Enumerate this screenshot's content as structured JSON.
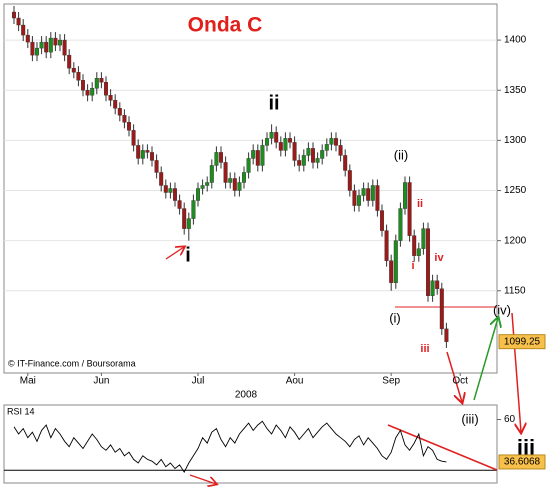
{
  "chart_data": [
    {
      "type": "candlestick",
      "title": "Onda C",
      "categories": [
        null,
        null,
        null,
        "Mai",
        null,
        null,
        null,
        null,
        null,
        null,
        null,
        null,
        null,
        null,
        null,
        null,
        null,
        null,
        null,
        "Jun",
        null,
        null,
        null,
        null,
        null,
        null,
        null,
        null,
        null,
        null,
        null,
        null,
        null,
        null,
        null,
        null,
        null,
        null,
        null,
        null,
        "Jul",
        null,
        null,
        null,
        null,
        null,
        null,
        null,
        null,
        null,
        null,
        null,
        null,
        null,
        null,
        null,
        null,
        null,
        null,
        null,
        null,
        "Aou",
        null,
        null,
        null,
        null,
        null,
        null,
        null,
        null,
        null,
        null,
        null,
        null,
        null,
        null,
        null,
        null,
        null,
        null,
        null,
        null,
        "Sep",
        null,
        null,
        null,
        null,
        null,
        null,
        null,
        null,
        null,
        null,
        null,
        null,
        null,
        null,
        "Oct",
        null,
        null
      ],
      "x_group_label": "2008",
      "open": [
        1428,
        1422,
        1415,
        1405,
        1398,
        1385,
        1392,
        1398,
        1388,
        1402,
        1395,
        1400,
        1385,
        1372,
        1368,
        1360,
        1350,
        1345,
        1352,
        1362,
        1358,
        1345,
        1340,
        1332,
        1325,
        1318,
        1310,
        1295,
        1282,
        1290,
        1288,
        1280,
        1268,
        1255,
        1248,
        1252,
        1240,
        1232,
        1212,
        1222,
        1240,
        1252,
        1255,
        1258,
        1275,
        1288,
        1278,
        1258,
        1262,
        1250,
        1258,
        1268,
        1282,
        1290,
        1275,
        1295,
        1302,
        1308,
        1298,
        1290,
        1302,
        1298,
        1280,
        1275,
        1285,
        1292,
        1278,
        1282,
        1290,
        1296,
        1302,
        1295,
        1285,
        1270,
        1250,
        1235,
        1245,
        1252,
        1240,
        1255,
        1230,
        1210,
        1180,
        1158,
        1200,
        1232,
        1258,
        1205,
        1185,
        1192,
        1212,
        1145,
        1160,
        1152,
        1112,
        null,
        null,
        null,
        null,
        null
      ],
      "high": [
        1434,
        1428,
        1421,
        1411,
        1404,
        1398,
        1404,
        1404,
        1408,
        1408,
        1406,
        1406,
        1391,
        1378,
        1374,
        1366,
        1356,
        1358,
        1368,
        1368,
        1364,
        1351,
        1346,
        1338,
        1331,
        1324,
        1316,
        1301,
        1296,
        1296,
        1294,
        1286,
        1274,
        1261,
        1258,
        1258,
        1246,
        1238,
        1228,
        1246,
        1258,
        1261,
        1264,
        1281,
        1294,
        1294,
        1284,
        1268,
        1268,
        1264,
        1274,
        1288,
        1296,
        1296,
        1301,
        1308,
        1316,
        1314,
        1304,
        1308,
        1308,
        1304,
        1286,
        1291,
        1298,
        1298,
        1288,
        1296,
        1302,
        1308,
        1308,
        1301,
        1291,
        1276,
        1256,
        1251,
        1258,
        1258,
        1261,
        1261,
        1236,
        1216,
        1186,
        1206,
        1238,
        1264,
        1264,
        1211,
        1198,
        1218,
        1218,
        1166,
        1166,
        1158,
        1118,
        null,
        null,
        null,
        null,
        null
      ],
      "low": [
        1416,
        1409,
        1399,
        1392,
        1379,
        1379,
        1386,
        1382,
        1382,
        1389,
        1389,
        1379,
        1366,
        1362,
        1354,
        1344,
        1339,
        1339,
        1346,
        1352,
        1339,
        1334,
        1326,
        1319,
        1312,
        1304,
        1289,
        1276,
        1276,
        1282,
        1274,
        1262,
        1249,
        1242,
        1242,
        1234,
        1226,
        1206,
        1200,
        1216,
        1234,
        1246,
        1249,
        1252,
        1269,
        1272,
        1252,
        1252,
        1244,
        1244,
        1252,
        1262,
        1276,
        1269,
        1269,
        1289,
        1296,
        1292,
        1284,
        1284,
        1292,
        1274,
        1269,
        1269,
        1279,
        1272,
        1272,
        1276,
        1284,
        1290,
        1289,
        1279,
        1264,
        1244,
        1229,
        1229,
        1239,
        1234,
        1234,
        1224,
        1204,
        1174,
        1150,
        1152,
        1194,
        1226,
        1199,
        1179,
        1179,
        1186,
        1139,
        1139,
        1146,
        1106,
        1093,
        null,
        null,
        null,
        null,
        null
      ],
      "close": [
        1422,
        1415,
        1405,
        1398,
        1385,
        1392,
        1398,
        1388,
        1402,
        1395,
        1400,
        1385,
        1372,
        1368,
        1360,
        1350,
        1345,
        1352,
        1362,
        1358,
        1345,
        1340,
        1332,
        1325,
        1318,
        1310,
        1295,
        1282,
        1290,
        1288,
        1280,
        1268,
        1255,
        1248,
        1252,
        1240,
        1232,
        1212,
        1222,
        1240,
        1252,
        1255,
        1258,
        1275,
        1288,
        1278,
        1258,
        1262,
        1250,
        1258,
        1268,
        1282,
        1290,
        1275,
        1295,
        1302,
        1308,
        1298,
        1290,
        1302,
        1298,
        1280,
        1275,
        1285,
        1292,
        1278,
        1282,
        1290,
        1296,
        1302,
        1295,
        1285,
        1270,
        1250,
        1235,
        1245,
        1252,
        1240,
        1255,
        1230,
        1210,
        1180,
        1158,
        1200,
        1232,
        1258,
        1205,
        1185,
        1192,
        1212,
        1145,
        1160,
        1152,
        1112,
        1099.25,
        null,
        null,
        null,
        null,
        null
      ],
      "up_color": "#1e8c1e",
      "down_color": "#9c1a1a",
      "ylim": [
        1068,
        1436
      ],
      "yticks": [
        1150,
        1200,
        1250,
        1300,
        1350,
        1400
      ],
      "grid": true,
      "credit": "© IT-Finance.com / Boursorama",
      "annotations": [
        "ii",
        "i",
        "(ii)",
        "(i)",
        "ii",
        "i",
        "iv",
        "iii",
        "(iv)",
        "(iii)",
        "iii"
      ]
    },
    {
      "type": "line",
      "title": "RSI 14",
      "color": "#000000",
      "values": [
        56,
        52,
        55,
        50,
        53,
        48,
        54,
        57,
        50,
        55,
        52,
        48,
        45,
        50,
        47,
        44,
        48,
        52,
        49,
        45,
        43,
        46,
        42,
        44,
        40,
        42,
        38,
        36,
        40,
        38,
        37,
        35,
        38,
        34,
        36,
        33,
        35,
        31,
        36,
        40,
        44,
        50,
        47,
        53,
        55,
        49,
        45,
        50,
        47,
        52,
        55,
        58,
        54,
        57,
        59,
        55,
        52,
        57,
        54,
        50,
        56,
        53,
        49,
        52,
        55,
        50,
        53,
        56,
        58,
        55,
        52,
        50,
        48,
        45,
        49,
        51,
        46,
        50,
        47,
        44,
        40,
        38,
        42,
        50,
        54,
        46,
        43,
        47,
        52,
        40,
        45,
        43,
        38,
        37,
        36.6068,
        null,
        null,
        null,
        null,
        null
      ],
      "ylim": [
        25,
        68
      ],
      "yticks": [
        60
      ],
      "reference_line": 32
    }
  ]
}
